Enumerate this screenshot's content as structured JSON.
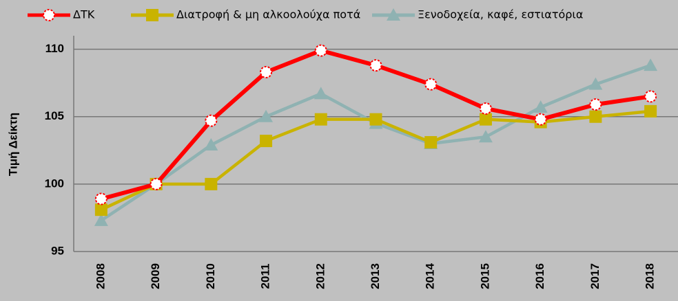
{
  "chart_data": {
    "type": "line",
    "y_label": "Τιμή Δείκτη",
    "categories": [
      "2008",
      "2009",
      "2010",
      "2011",
      "2012",
      "2013",
      "2014",
      "2015",
      "2016",
      "2017",
      "2018"
    ],
    "series": [
      {
        "name": "ΔΤΚ",
        "color": "#ff0000",
        "marker": "circle",
        "values": [
          98.9,
          100,
          104.7,
          108.3,
          109.9,
          108.8,
          107.4,
          105.6,
          104.8,
          105.9,
          106.5
        ]
      },
      {
        "name": "Διατροφή & μη αλκοολούχα ποτά",
        "color": "#c9b300",
        "marker": "square",
        "values": [
          98.1,
          100,
          100,
          103.2,
          104.8,
          104.8,
          103.1,
          104.8,
          104.6,
          105,
          105.4
        ]
      },
      {
        "name": "Ξενοδοχεία, καφέ, εστιατόρια",
        "color": "#8fb2b2",
        "marker": "triangle",
        "values": [
          97.3,
          100,
          102.9,
          105,
          106.7,
          104.5,
          103,
          103.5,
          105.7,
          107.4,
          108.8
        ]
      }
    ],
    "ylim": [
      95,
      111
    ],
    "yticks": [
      95,
      100,
      105,
      110
    ],
    "grid": true
  }
}
